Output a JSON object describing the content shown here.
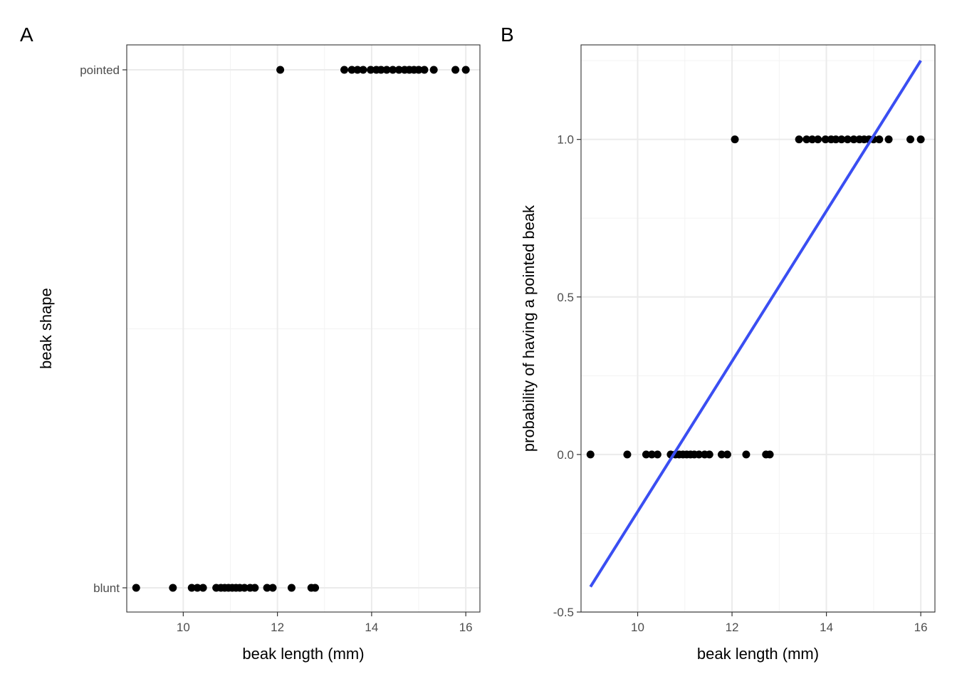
{
  "chart_data": [
    {
      "type": "scatter",
      "panel_label": "A",
      "xlabel": "beak length (mm)",
      "ylabel": "beak shape",
      "xlim": [
        8.8,
        16.3
      ],
      "x_ticks": [
        10,
        12,
        14,
        16
      ],
      "y_categories": [
        "blunt",
        "pointed"
      ],
      "grid": true,
      "series": [
        {
          "category": "blunt",
          "x": [
            9.0,
            9.78,
            10.18,
            10.3,
            10.42,
            10.7,
            10.8,
            10.88,
            10.96,
            11.04,
            11.12,
            11.2,
            11.3,
            11.42,
            11.52,
            11.78,
            11.9,
            12.3,
            12.72,
            12.8
          ]
        },
        {
          "category": "pointed",
          "x": [
            12.06,
            13.42,
            13.58,
            13.7,
            13.82,
            13.98,
            14.1,
            14.2,
            14.32,
            14.45,
            14.58,
            14.7,
            14.8,
            14.9,
            15.0,
            15.12,
            15.32,
            15.78,
            16.0
          ]
        }
      ]
    },
    {
      "type": "scatter",
      "panel_label": "B",
      "xlabel": "beak length (mm)",
      "ylabel": "probability of having a pointed beak",
      "xlim": [
        8.8,
        16.3
      ],
      "ylim": [
        -0.5,
        1.3
      ],
      "x_ticks": [
        10,
        12,
        14,
        16
      ],
      "y_ticks": [
        "-0.5",
        "0.0",
        "0.5",
        "1.0"
      ],
      "grid": true,
      "series": [
        {
          "y": 0,
          "x": [
            9.0,
            9.78,
            10.18,
            10.3,
            10.42,
            10.7,
            10.8,
            10.88,
            10.96,
            11.04,
            11.12,
            11.2,
            11.3,
            11.42,
            11.52,
            11.78,
            11.9,
            12.3,
            12.72,
            12.8
          ]
        },
        {
          "y": 1,
          "x": [
            12.06,
            13.42,
            13.58,
            13.7,
            13.82,
            13.98,
            14.1,
            14.2,
            14.32,
            14.45,
            14.58,
            14.7,
            14.8,
            14.9,
            15.0,
            15.12,
            15.32,
            15.78,
            16.0
          ]
        }
      ],
      "fit_line": {
        "x": [
          9.0,
          16.0
        ],
        "y": [
          -0.42,
          1.25
        ],
        "color": "#3a4ef2"
      }
    }
  ]
}
